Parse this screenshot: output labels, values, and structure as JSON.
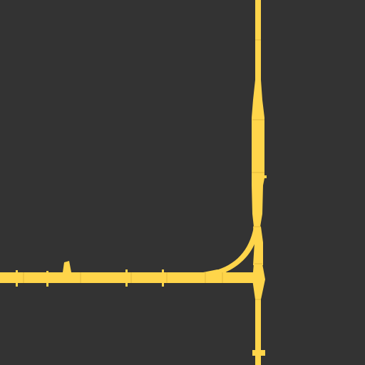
{
  "map": {
    "background_color": "#333333",
    "road_color": "#FFD54A",
    "road_seam_color": "#E0B73A",
    "features": [
      {
        "name": "vertical-road",
        "kind": "road"
      },
      {
        "name": "horizontal-road",
        "kind": "road"
      },
      {
        "name": "curved-ramp",
        "kind": "ramp"
      },
      {
        "name": "junction",
        "kind": "junction"
      }
    ]
  }
}
